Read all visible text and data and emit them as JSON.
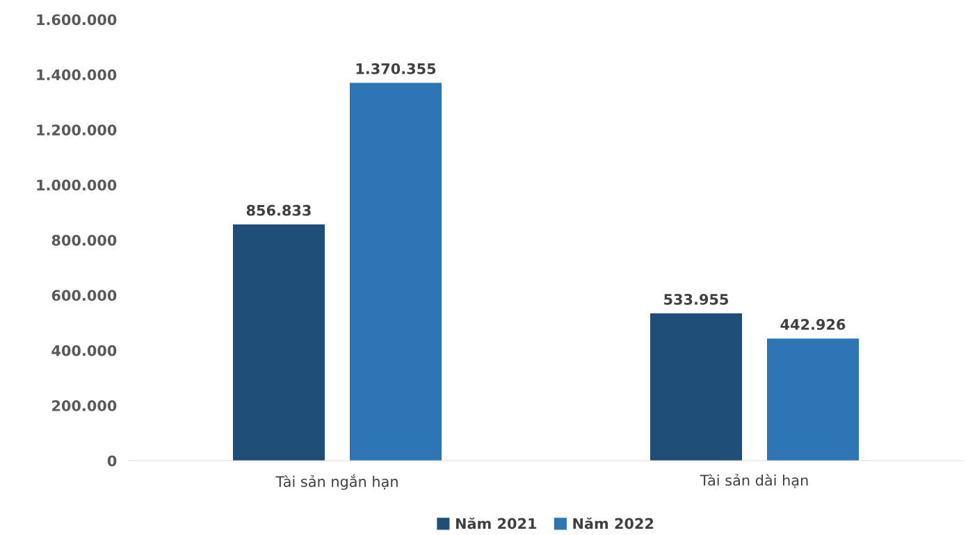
{
  "chart_data": {
    "type": "bar",
    "categories": [
      "Tài sản ngắn hạn",
      "Tài sản dài hạn"
    ],
    "series": [
      {
        "name": "Năm 2021",
        "color": "#1f4e79",
        "values": [
          856833,
          533955
        ],
        "value_labels": [
          "856.833",
          "533.955"
        ]
      },
      {
        "name": "Năm 2022",
        "color": "#2e75b6",
        "values": [
          1370355,
          442926
        ],
        "value_labels": [
          "1.370.355",
          "442.926"
        ]
      }
    ],
    "ylim": [
      0,
      1600000
    ],
    "yticks": [
      {
        "value": 0,
        "label": "0"
      },
      {
        "value": 200000,
        "label": "200.000"
      },
      {
        "value": 400000,
        "label": "400.000"
      },
      {
        "value": 600000,
        "label": "600.000"
      },
      {
        "value": 800000,
        "label": "800.000"
      },
      {
        "value": 1000000,
        "label": "1.000.000"
      },
      {
        "value": 1200000,
        "label": "1.200.000"
      },
      {
        "value": 1400000,
        "label": "1.400.000"
      },
      {
        "value": 1600000,
        "label": "1.600.000"
      }
    ],
    "grid": false,
    "legend": "bottom"
  }
}
